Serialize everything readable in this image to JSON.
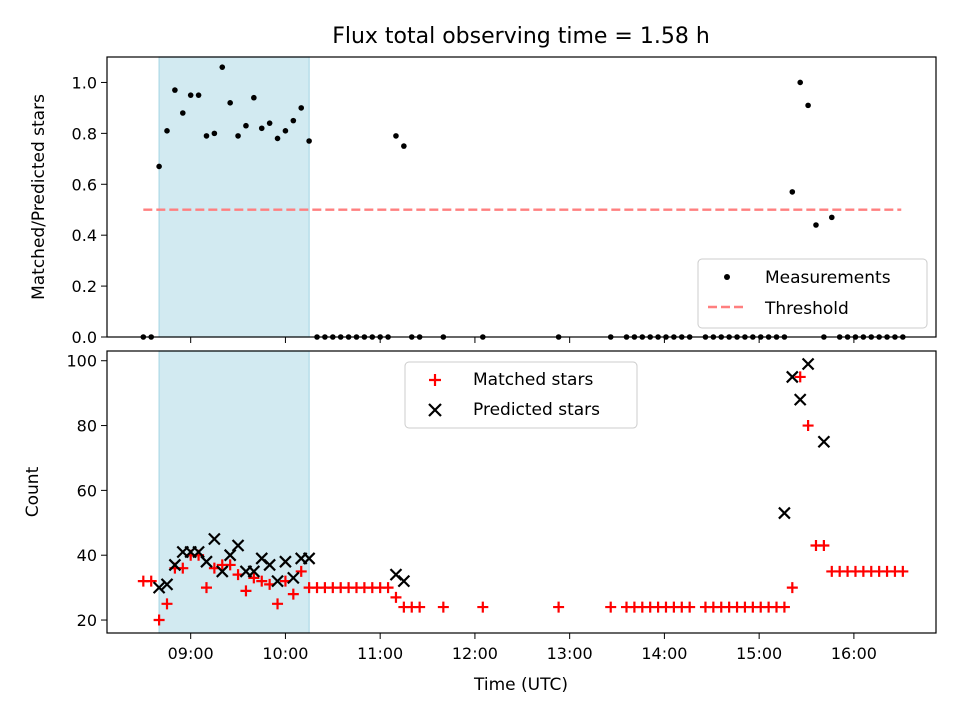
{
  "figure": {
    "title": "Flux total observing time = 1.58 h",
    "colors": {
      "measurement": "#000000",
      "threshold": "#ff7f7f",
      "matched": "#ff0000",
      "predicted": "#000000",
      "span": "#add8e6"
    }
  },
  "chart_data": [
    {
      "type": "scatter",
      "ylabel": "Matched/Predicted stars",
      "xlabel": "",
      "ylim": [
        0.0,
        1.1
      ],
      "xlim": [
        "08:07",
        "16:52"
      ],
      "yticks": [
        0.0,
        0.2,
        0.4,
        0.6,
        0.8,
        1.0
      ],
      "ytick_labels": [
        "0.0",
        "0.2",
        "0.4",
        "0.6",
        "0.8",
        "1.0"
      ],
      "xticks": [
        "09:00",
        "10:00",
        "11:00",
        "12:00",
        "13:00",
        "14:00",
        "15:00",
        "16:00"
      ],
      "shaded_span": [
        "08:40",
        "10:15"
      ],
      "legend": {
        "position": "lower-right",
        "entries": [
          "Measurements",
          "Threshold"
        ]
      },
      "threshold": {
        "name": "Threshold",
        "y": 0.5,
        "x": [
          "08:30",
          "16:30"
        ]
      },
      "series": [
        {
          "name": "Measurements",
          "x": [
            "08:30",
            "08:35",
            "08:40",
            "08:45",
            "08:50",
            "08:55",
            "09:00",
            "09:05",
            "09:10",
            "09:15",
            "09:20",
            "09:25",
            "09:30",
            "09:35",
            "09:40",
            "09:45",
            "09:50",
            "09:55",
            "10:00",
            "10:05",
            "10:10",
            "10:15",
            "10:20",
            "10:25",
            "10:30",
            "10:35",
            "10:40",
            "10:45",
            "10:50",
            "10:55",
            "11:00",
            "11:05",
            "11:10",
            "11:15",
            "11:20",
            "11:25",
            "11:40",
            "12:05",
            "12:53",
            "13:26",
            "13:36",
            "13:41",
            "13:46",
            "13:51",
            "13:56",
            "14:01",
            "14:06",
            "14:11",
            "14:16",
            "14:26",
            "14:31",
            "14:36",
            "14:41",
            "14:46",
            "14:51",
            "14:56",
            "15:01",
            "15:06",
            "15:11",
            "15:16",
            "15:21",
            "15:26",
            "15:31",
            "15:36",
            "15:41",
            "15:46",
            "15:51",
            "15:56",
            "16:01",
            "16:06",
            "16:11",
            "16:16",
            "16:21",
            "16:26",
            "16:31"
          ],
          "y": [
            0.0,
            0.0,
            0.67,
            0.81,
            0.97,
            0.88,
            0.95,
            0.95,
            0.79,
            0.8,
            1.06,
            0.92,
            0.79,
            0.83,
            0.94,
            0.82,
            0.84,
            0.78,
            0.81,
            0.85,
            0.9,
            0.77,
            0.0,
            0.0,
            0.0,
            0.0,
            0.0,
            0.0,
            0.0,
            0.0,
            0.0,
            0.0,
            0.79,
            0.75,
            0.0,
            0.0,
            0.0,
            0.0,
            0.0,
            0.0,
            0.0,
            0.0,
            0.0,
            0.0,
            0.0,
            0.0,
            0.0,
            0.0,
            0.0,
            0.0,
            0.0,
            0.0,
            0.0,
            0.0,
            0.0,
            0.0,
            0.0,
            0.0,
            0.0,
            0.0,
            0.57,
            1.0,
            0.91,
            0.44,
            0.0,
            0.47,
            0.0,
            0.0,
            0.0,
            0.0,
            0.0,
            0.0,
            0.0,
            0.0,
            0.0
          ]
        }
      ]
    },
    {
      "type": "scatter",
      "ylabel": "Count",
      "xlabel": "Time (UTC)",
      "ylim": [
        16,
        103
      ],
      "xlim": [
        "08:07",
        "16:52"
      ],
      "yticks": [
        20,
        40,
        60,
        80,
        100
      ],
      "ytick_labels": [
        "20",
        "40",
        "60",
        "80",
        "100"
      ],
      "xticks": [
        "09:00",
        "10:00",
        "11:00",
        "12:00",
        "13:00",
        "14:00",
        "15:00",
        "16:00"
      ],
      "xtick_labels": [
        "09:00",
        "10:00",
        "11:00",
        "12:00",
        "13:00",
        "14:00",
        "15:00",
        "16:00"
      ],
      "shaded_span": [
        "08:40",
        "10:15"
      ],
      "legend": {
        "position": "upper-center",
        "entries": [
          "Matched stars",
          "Predicted stars"
        ]
      },
      "series": [
        {
          "name": "Matched stars",
          "marker": "plus",
          "x": [
            "08:30",
            "08:35",
            "08:40",
            "08:45",
            "08:50",
            "08:55",
            "09:00",
            "09:05",
            "09:10",
            "09:15",
            "09:20",
            "09:25",
            "09:30",
            "09:35",
            "09:40",
            "09:45",
            "09:50",
            "09:55",
            "10:00",
            "10:05",
            "10:10",
            "10:15",
            "10:20",
            "10:25",
            "10:30",
            "10:35",
            "10:40",
            "10:45",
            "10:50",
            "10:55",
            "11:00",
            "11:05",
            "11:10",
            "11:15",
            "11:20",
            "11:25",
            "11:40",
            "12:05",
            "12:53",
            "13:26",
            "13:36",
            "13:41",
            "13:46",
            "13:51",
            "13:56",
            "14:01",
            "14:06",
            "14:11",
            "14:16",
            "14:26",
            "14:31",
            "14:36",
            "14:41",
            "14:46",
            "14:51",
            "14:56",
            "15:01",
            "15:06",
            "15:11",
            "15:16",
            "15:21",
            "15:26",
            "15:31",
            "15:36",
            "15:41",
            "15:46",
            "15:51",
            "15:56",
            "16:01",
            "16:06",
            "16:11",
            "16:16",
            "16:21",
            "16:26",
            "16:31"
          ],
          "y": [
            32,
            32,
            20,
            25,
            36,
            36,
            40,
            40,
            30,
            36,
            37,
            37,
            34,
            29,
            33,
            32,
            31,
            25,
            32,
            28,
            35,
            30,
            30,
            30,
            30,
            30,
            30,
            30,
            30,
            30,
            30,
            30,
            27,
            24,
            24,
            24,
            24,
            24,
            24,
            24,
            24,
            24,
            24,
            24,
            24,
            24,
            24,
            24,
            24,
            24,
            24,
            24,
            24,
            24,
            24,
            24,
            24,
            24,
            24,
            24,
            30,
            95,
            80,
            43,
            43,
            35,
            35,
            35,
            35,
            35,
            35,
            35,
            35,
            35,
            35
          ]
        },
        {
          "name": "Predicted stars",
          "marker": "x",
          "x": [
            "08:40",
            "08:45",
            "08:50",
            "08:55",
            "09:00",
            "09:05",
            "09:10",
            "09:15",
            "09:20",
            "09:25",
            "09:30",
            "09:35",
            "09:40",
            "09:45",
            "09:50",
            "09:55",
            "10:00",
            "10:05",
            "10:10",
            "10:15",
            "11:10",
            "11:15",
            "15:16",
            "15:21",
            "15:26",
            "15:31",
            "15:41"
          ],
          "y": [
            30,
            31,
            37,
            41,
            41,
            41,
            38,
            45,
            35,
            40,
            43,
            35,
            35,
            39,
            37,
            32,
            38,
            33,
            39,
            39,
            34,
            32,
            53,
            95,
            88,
            99,
            75
          ]
        }
      ]
    }
  ]
}
